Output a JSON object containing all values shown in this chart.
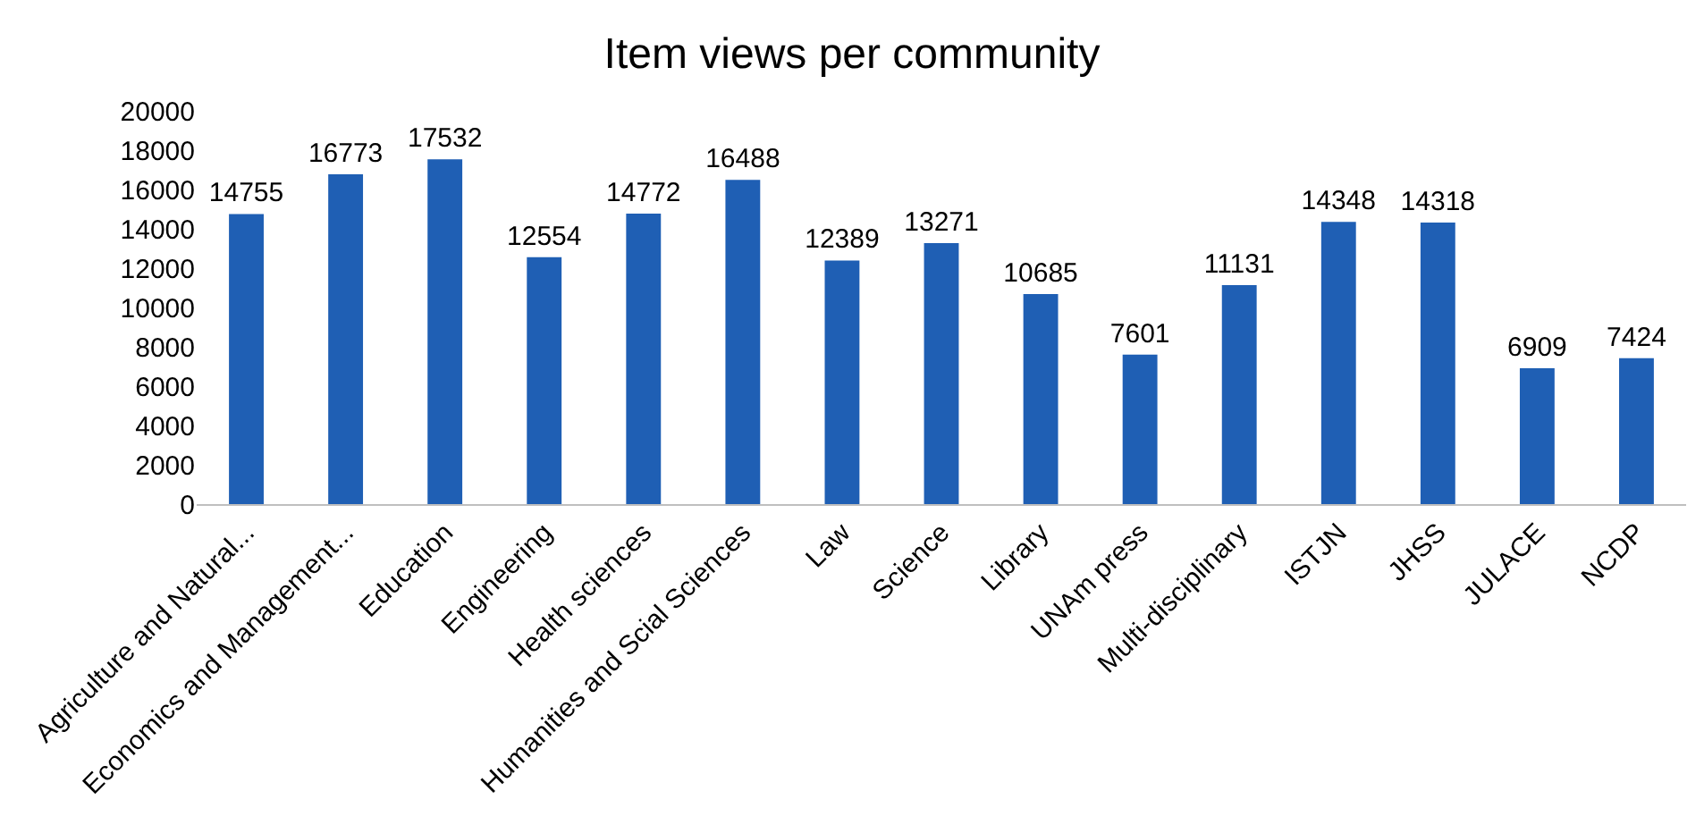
{
  "chart_data": {
    "type": "bar",
    "title": "Item views per community",
    "categories": [
      "Agriculture and Natural...",
      "Economics and Management...",
      "Education",
      "Engineering",
      "Health sciences",
      "Humanities and Scial Sciences",
      "Law",
      "Science",
      "Library",
      "UNAm press",
      "Multi-disciplinary",
      "ISTJN",
      "JHSS",
      "JULACE",
      "NCDP"
    ],
    "values": [
      14755,
      16773,
      17532,
      12554,
      14772,
      16488,
      12389,
      13271,
      10685,
      7601,
      11131,
      14348,
      14318,
      6909,
      7424
    ],
    "color": "#1f5fb4",
    "ylim": [
      0,
      20000
    ],
    "yticks": [
      0,
      2000,
      4000,
      6000,
      8000,
      10000,
      12000,
      14000,
      16000,
      18000,
      20000
    ],
    "grid": false,
    "data_labels": true
  }
}
